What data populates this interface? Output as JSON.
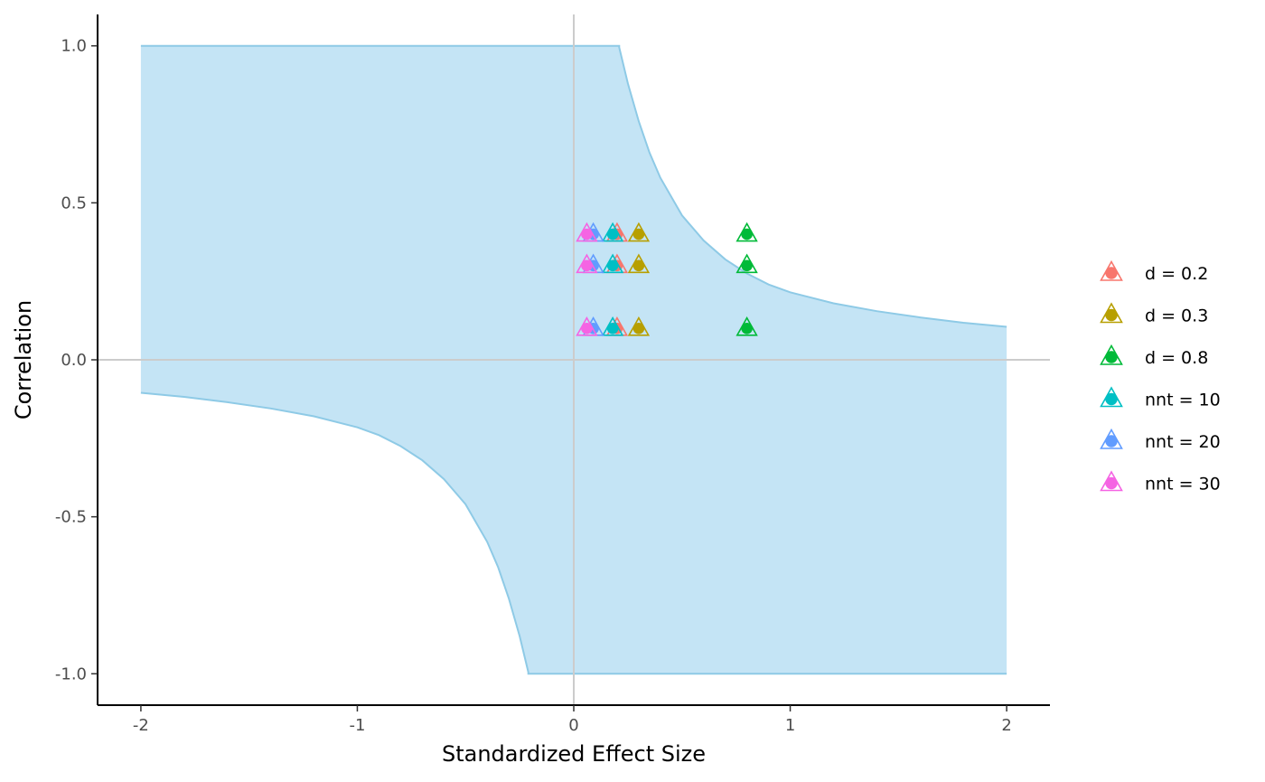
{
  "chart_data": {
    "type": "scatter",
    "title": "",
    "xlabel": "Standardized Effect Size",
    "ylabel": "Correlation",
    "xlim": [
      -2.2,
      2.2
    ],
    "ylim": [
      -1.1,
      1.1
    ],
    "x_ticks": [
      -2,
      -1,
      0,
      1,
      2
    ],
    "x_tick_labels": [
      "-2",
      "-1",
      "0",
      "1",
      "2"
    ],
    "y_ticks": [
      -1.0,
      -0.5,
      0.0,
      0.5,
      1.0
    ],
    "y_tick_labels": [
      "-1.0",
      "-0.5",
      "0.0",
      "0.5",
      "1.0"
    ],
    "grid": false,
    "reference_lines": {
      "x": 0,
      "y": 0,
      "color": "#cccccc"
    },
    "legend_position": "right",
    "marker_style": "hollow triangle with filled circle",
    "region": {
      "fill": "#c4e4f5",
      "stroke": "#8ecae6",
      "upper_left": [
        [
          -2,
          1.0
        ],
        [
          0.21,
          1.0
        ]
      ],
      "upper_curve": [
        [
          0.21,
          0.995
        ],
        [
          0.25,
          0.88
        ],
        [
          0.3,
          0.76
        ],
        [
          0.35,
          0.66
        ],
        [
          0.4,
          0.58
        ],
        [
          0.5,
          0.46
        ],
        [
          0.6,
          0.38
        ],
        [
          0.7,
          0.32
        ],
        [
          0.8,
          0.275
        ],
        [
          0.9,
          0.24
        ],
        [
          1.0,
          0.215
        ],
        [
          1.2,
          0.18
        ],
        [
          1.4,
          0.155
        ],
        [
          1.6,
          0.135
        ],
        [
          1.8,
          0.118
        ],
        [
          2.0,
          0.105
        ]
      ],
      "lower_curve": [
        [
          -2.0,
          -0.105
        ],
        [
          -1.8,
          -0.118
        ],
        [
          -1.6,
          -0.135
        ],
        [
          -1.4,
          -0.155
        ],
        [
          -1.2,
          -0.18
        ],
        [
          -1.0,
          -0.215
        ],
        [
          -0.9,
          -0.24
        ],
        [
          -0.8,
          -0.275
        ],
        [
          -0.7,
          -0.32
        ],
        [
          -0.6,
          -0.38
        ],
        [
          -0.5,
          -0.46
        ],
        [
          -0.4,
          -0.58
        ],
        [
          -0.35,
          -0.66
        ],
        [
          -0.3,
          -0.76
        ],
        [
          -0.25,
          -0.88
        ],
        [
          -0.21,
          -0.995
        ]
      ],
      "lower_right": [
        [
          -0.21,
          -1.0
        ],
        [
          2,
          -1.0
        ]
      ]
    },
    "series": [
      {
        "name": "d = 0.2",
        "color": "#f8766d",
        "x": [
          0.2,
          0.2,
          0.2
        ],
        "y": [
          0.1,
          0.3,
          0.4
        ]
      },
      {
        "name": "d = 0.3",
        "color": "#b79f00",
        "x": [
          0.3,
          0.3,
          0.3
        ],
        "y": [
          0.1,
          0.3,
          0.4
        ]
      },
      {
        "name": "d = 0.8",
        "color": "#00ba38",
        "x": [
          0.8,
          0.8,
          0.8
        ],
        "y": [
          0.1,
          0.3,
          0.4
        ]
      },
      {
        "name": "nnt = 10",
        "color": "#00bfc4",
        "x": [
          0.18,
          0.18,
          0.18
        ],
        "y": [
          0.1,
          0.3,
          0.4
        ]
      },
      {
        "name": "nnt = 20",
        "color": "#619cff",
        "x": [
          0.09,
          0.09,
          0.09
        ],
        "y": [
          0.1,
          0.3,
          0.4
        ]
      },
      {
        "name": "nnt = 30",
        "color": "#f564e3",
        "x": [
          0.06,
          0.06,
          0.06
        ],
        "y": [
          0.1,
          0.3,
          0.4
        ]
      }
    ]
  }
}
